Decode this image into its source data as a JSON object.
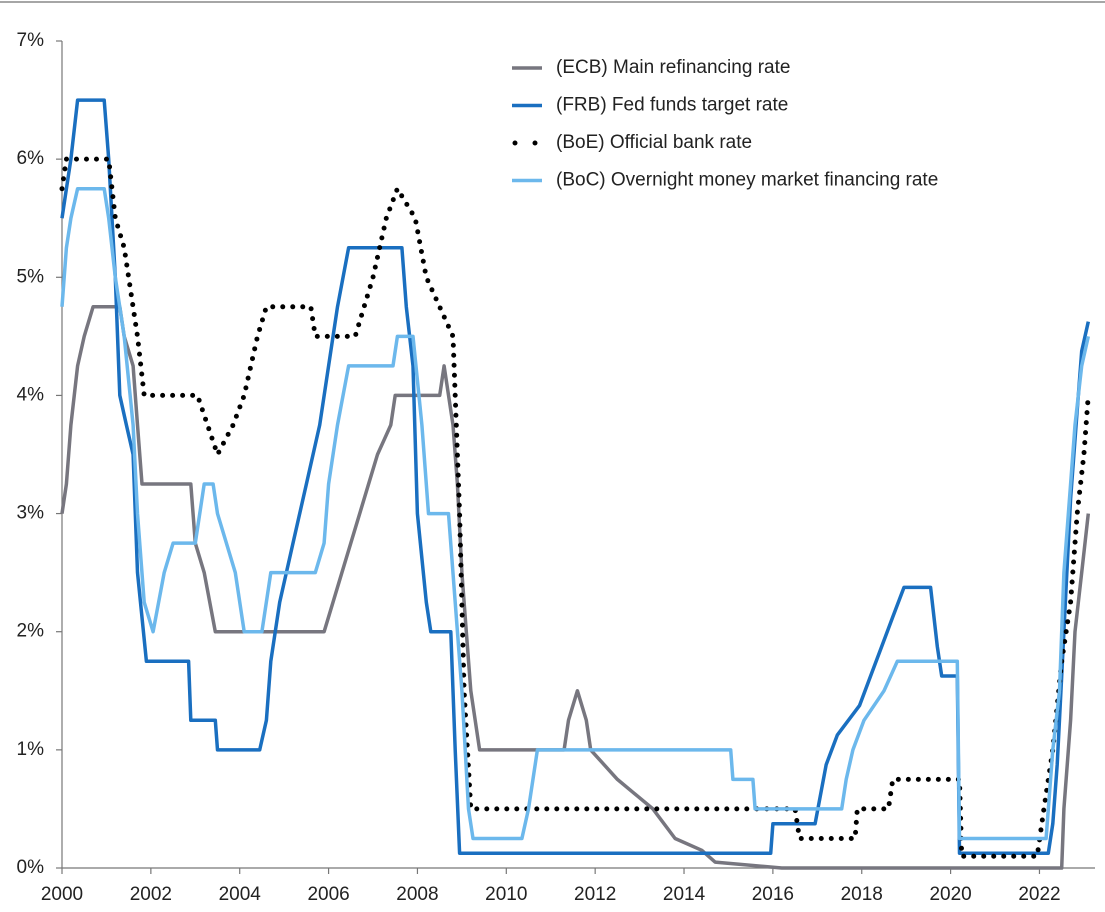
{
  "chart_data": {
    "type": "line",
    "xlim": [
      2000,
      2023.25
    ],
    "ylim": [
      0,
      7
    ],
    "xticks": [
      2000,
      2002,
      2004,
      2006,
      2008,
      2010,
      2012,
      2014,
      2016,
      2018,
      2020,
      2022
    ],
    "yticks": [
      {
        "value": 0,
        "label": "0%"
      },
      {
        "value": 1,
        "label": "1%"
      },
      {
        "value": 2,
        "label": "2%"
      },
      {
        "value": 3,
        "label": "3%"
      },
      {
        "value": 4,
        "label": "4%"
      },
      {
        "value": 5,
        "label": "5%"
      },
      {
        "value": 6,
        "label": "6%"
      },
      {
        "value": 7,
        "label": "7%"
      }
    ],
    "legend": "upper right",
    "series": [
      {
        "name": "(ECB) Main refinancing rate",
        "color": "#77767f",
        "style": "solid",
        "x": [
          2000,
          2000.1,
          2000.2,
          2000.35,
          2000.5,
          2000.7,
          2001.3,
          2001.4,
          2001.6,
          2001.7,
          2001.8,
          2002.9,
          2003.0,
          2003.2,
          2003.45,
          2005.9,
          2006.1,
          2006.3,
          2006.5,
          2006.7,
          2006.9,
          2007.1,
          2007.4,
          2007.5,
          2008.5,
          2008.6,
          2008.8,
          2008.9,
          2009.0,
          2009.1,
          2009.2,
          2009.4,
          2011.3,
          2011.4,
          2011.6,
          2011.8,
          2011.9,
          2012.5,
          2013.3,
          2013.8,
          2014.4,
          2014.7,
          2016.2,
          2022.5,
          2022.55,
          2022.7,
          2022.8,
          2022.95,
          2023.1
        ],
        "values": [
          3.0,
          3.25,
          3.75,
          4.25,
          4.5,
          4.75,
          4.75,
          4.5,
          4.25,
          3.75,
          3.25,
          3.25,
          2.75,
          2.5,
          2.0,
          2.0,
          2.25,
          2.5,
          2.75,
          3.0,
          3.25,
          3.5,
          3.75,
          4.0,
          4.0,
          4.25,
          3.75,
          3.25,
          2.5,
          2.0,
          1.5,
          1.0,
          1.0,
          1.25,
          1.5,
          1.25,
          1.0,
          0.75,
          0.5,
          0.25,
          0.15,
          0.05,
          0.0,
          0.0,
          0.5,
          1.25,
          2.0,
          2.5,
          3.0
        ]
      },
      {
        "name": "(FRB) Fed funds target rate",
        "color": "#1a6fc0",
        "style": "solid",
        "x": [
          2000,
          2000.1,
          2000.2,
          2000.35,
          2000.95,
          2001.05,
          2001.2,
          2001.3,
          2001.45,
          2001.6,
          2001.7,
          2001.9,
          2002.85,
          2002.9,
          2003.45,
          2003.5,
          2004.45,
          2004.6,
          2004.7,
          2004.9,
          2005.2,
          2005.5,
          2005.8,
          2006.0,
          2006.2,
          2006.45,
          2007.65,
          2007.75,
          2007.9,
          2008.0,
          2008.2,
          2008.3,
          2008.75,
          2008.85,
          2008.95,
          2015.95,
          2016.0,
          2016.95,
          2017.2,
          2017.45,
          2017.95,
          2018.2,
          2018.45,
          2018.7,
          2018.95,
          2019.55,
          2019.7,
          2019.8,
          2020.15,
          2020.2,
          2022.2,
          2022.3,
          2022.4,
          2022.5,
          2022.6,
          2022.7,
          2022.85,
          2022.95,
          2023.1
        ],
        "values": [
          5.5,
          5.75,
          6.0,
          6.5,
          6.5,
          6.0,
          5.0,
          4.0,
          3.75,
          3.5,
          2.5,
          1.75,
          1.75,
          1.25,
          1.25,
          1.0,
          1.0,
          1.25,
          1.75,
          2.25,
          2.75,
          3.25,
          3.75,
          4.25,
          4.75,
          5.25,
          5.25,
          4.75,
          4.25,
          3.0,
          2.25,
          2.0,
          2.0,
          1.0,
          0.125,
          0.125,
          0.375,
          0.375,
          0.875,
          1.125,
          1.375,
          1.625,
          1.875,
          2.125,
          2.375,
          2.375,
          1.875,
          1.625,
          1.625,
          0.125,
          0.125,
          0.375,
          0.875,
          1.625,
          2.375,
          3.125,
          3.875,
          4.375,
          4.625
        ]
      },
      {
        "name": "(BoE) Official bank rate",
        "color": "#000000",
        "style": "dotted",
        "x": [
          2000,
          2000.1,
          2001.05,
          2001.2,
          2001.4,
          2001.7,
          2001.85,
          2003.05,
          2003.5,
          2003.85,
          2004.1,
          2004.4,
          2004.6,
          2005.6,
          2005.7,
          2006.6,
          2006.8,
          2007.0,
          2007.3,
          2007.55,
          2007.95,
          2008.2,
          2008.8,
          2008.95,
          2009.05,
          2009.2,
          2016.5,
          2016.6,
          2017.85,
          2017.9,
          2018.6,
          2018.7,
          2020.2,
          2020.25,
          2021.95,
          2022.1,
          2022.3,
          2022.5,
          2022.7,
          2022.85,
          2023.0,
          2023.1
        ],
        "values": [
          5.75,
          6.0,
          6.0,
          5.5,
          5.25,
          4.5,
          4.0,
          4.0,
          3.5,
          3.75,
          4.0,
          4.5,
          4.75,
          4.75,
          4.5,
          4.5,
          4.75,
          5.0,
          5.5,
          5.75,
          5.5,
          5.0,
          4.5,
          3.0,
          1.5,
          0.5,
          0.5,
          0.25,
          0.25,
          0.5,
          0.5,
          0.75,
          0.75,
          0.1,
          0.1,
          0.5,
          1.0,
          1.75,
          2.25,
          3.0,
          3.5,
          4.0
        ]
      },
      {
        "name": "(BoC) Overnight money market financing rate",
        "color": "#6cb8ec",
        "style": "solid",
        "x": [
          2000,
          2000.1,
          2000.2,
          2000.35,
          2000.95,
          2001.05,
          2001.2,
          2001.4,
          2001.6,
          2001.7,
          2001.85,
          2002.05,
          2002.3,
          2002.5,
          2003.0,
          2003.2,
          2003.4,
          2003.5,
          2003.7,
          2003.9,
          2004.1,
          2004.5,
          2004.7,
          2005.7,
          2005.9,
          2006.0,
          2006.2,
          2006.45,
          2007.45,
          2007.55,
          2007.9,
          2008.1,
          2008.25,
          2008.7,
          2008.85,
          2009.0,
          2009.15,
          2009.25,
          2010.35,
          2010.5,
          2010.7,
          2015.05,
          2015.1,
          2015.55,
          2015.6,
          2017.55,
          2017.65,
          2017.8,
          2018.05,
          2018.5,
          2018.8,
          2020.15,
          2020.2,
          2022.15,
          2022.3,
          2022.45,
          2022.55,
          2022.7,
          2022.8,
          2022.95,
          2023.1
        ],
        "values": [
          4.75,
          5.25,
          5.5,
          5.75,
          5.75,
          5.5,
          5.0,
          4.5,
          3.75,
          3.0,
          2.25,
          2.0,
          2.5,
          2.75,
          2.75,
          3.25,
          3.25,
          3.0,
          2.75,
          2.5,
          2.0,
          2.0,
          2.5,
          2.5,
          2.75,
          3.25,
          3.75,
          4.25,
          4.25,
          4.5,
          4.5,
          3.75,
          3.0,
          3.0,
          2.25,
          1.5,
          0.5,
          0.25,
          0.25,
          0.5,
          1.0,
          1.0,
          0.75,
          0.75,
          0.5,
          0.5,
          0.75,
          1.0,
          1.25,
          1.5,
          1.75,
          1.75,
          0.25,
          0.25,
          1.0,
          1.5,
          2.5,
          3.25,
          3.75,
          4.25,
          4.5
        ]
      }
    ]
  }
}
